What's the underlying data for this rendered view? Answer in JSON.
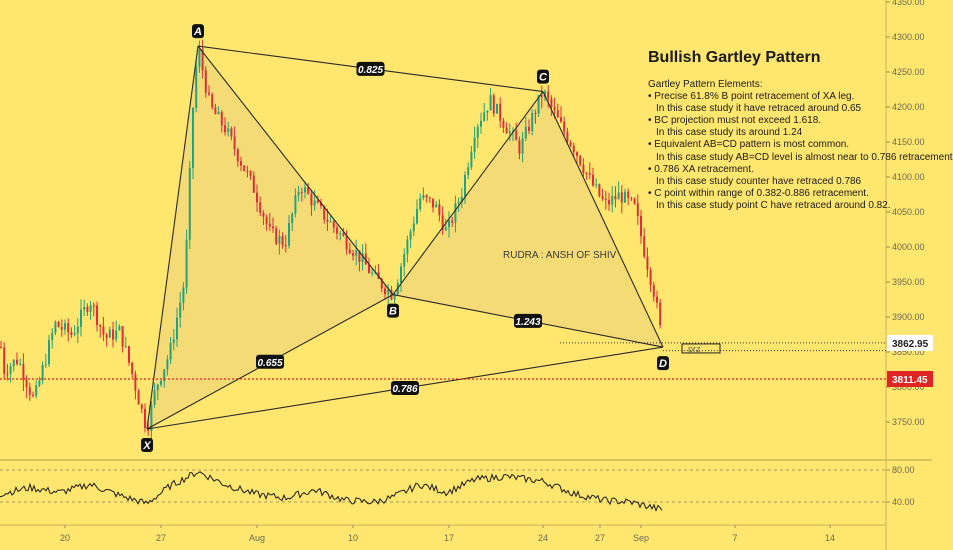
{
  "chart_data": [
    {
      "type": "candlestick",
      "title": "",
      "y_axis": {
        "ticks": [
          "4350.00",
          "4300.00",
          "4250.00",
          "4200.00",
          "4150.00",
          "4100.00",
          "4050.00",
          "4000.00",
          "3950.00",
          "3900.00",
          "3850.00",
          "3800.00",
          "3750.00"
        ],
        "ylim": [
          3720,
          4355
        ]
      },
      "x_axis": {
        "tick_labels": [
          "20",
          "27",
          "Aug",
          "10",
          "17",
          "24",
          "27",
          "Sep",
          "7",
          "14"
        ]
      },
      "price_labels": [
        {
          "text": "3862.95",
          "color": "#ffffff",
          "text_color": "#222222"
        },
        {
          "text": "3811.45",
          "color": "#e02424",
          "text_color": "#ffffff"
        }
      ],
      "pattern": {
        "name": "Bullish Gartley Pattern",
        "points": [
          {
            "label": "X",
            "value": 3740
          },
          {
            "label": "A",
            "value": 4287
          },
          {
            "label": "B",
            "value": 3932
          },
          {
            "label": "C",
            "value": 4222
          },
          {
            "label": "D",
            "value": 3857
          }
        ],
        "ratios": [
          {
            "text": "0.825",
            "leg": "A-C"
          },
          {
            "text": "0.655",
            "leg": "X-B"
          },
          {
            "text": "1.243",
            "leg": "B-D"
          },
          {
            "text": "0.786",
            "leg": "X-D"
          }
        ],
        "zone_label": "prz",
        "fill_color": "#f2d77a",
        "line_color": "#2a2a2a"
      },
      "candle_colors": {
        "up": "#26a17b",
        "down": "#d8313b"
      },
      "watermark": "RUDRA : ANSH OF SHIV"
    },
    {
      "type": "line",
      "title": "",
      "y_axis": {
        "ticks": [
          "80.00",
          "40.00"
        ],
        "ylim": [
          20,
          95
        ]
      },
      "series_color": "#1a1a1a"
    }
  ],
  "notes": {
    "title": "Bullish Gartley Pattern",
    "heading": "Gartley Pattern Elements:",
    "lines": [
      {
        "text": "• Precise 61.8% B point retracement of XA leg.",
        "indent": false
      },
      {
        "text": "In this case study it have retraced around 0.65",
        "indent": true
      },
      {
        "text": "• BC projection must not exceed 1.618.",
        "indent": false
      },
      {
        "text": "In this case study its around 1.24",
        "indent": true
      },
      {
        "text": "• Equivalent AB=CD pattern is most common.",
        "indent": false
      },
      {
        "text": "In this case study AB=CD level is almost near to 0.786 retracement",
        "indent": true
      },
      {
        "text": "• 0.786 XA retracement.",
        "indent": false
      },
      {
        "text": "In this case study counter have retraced 0.786",
        "indent": true
      },
      {
        "text": "• C point within range of 0.382-0.886 retracement.",
        "indent": false
      },
      {
        "text": "In this case study point C have retraced around 0.82.",
        "indent": true
      }
    ]
  }
}
